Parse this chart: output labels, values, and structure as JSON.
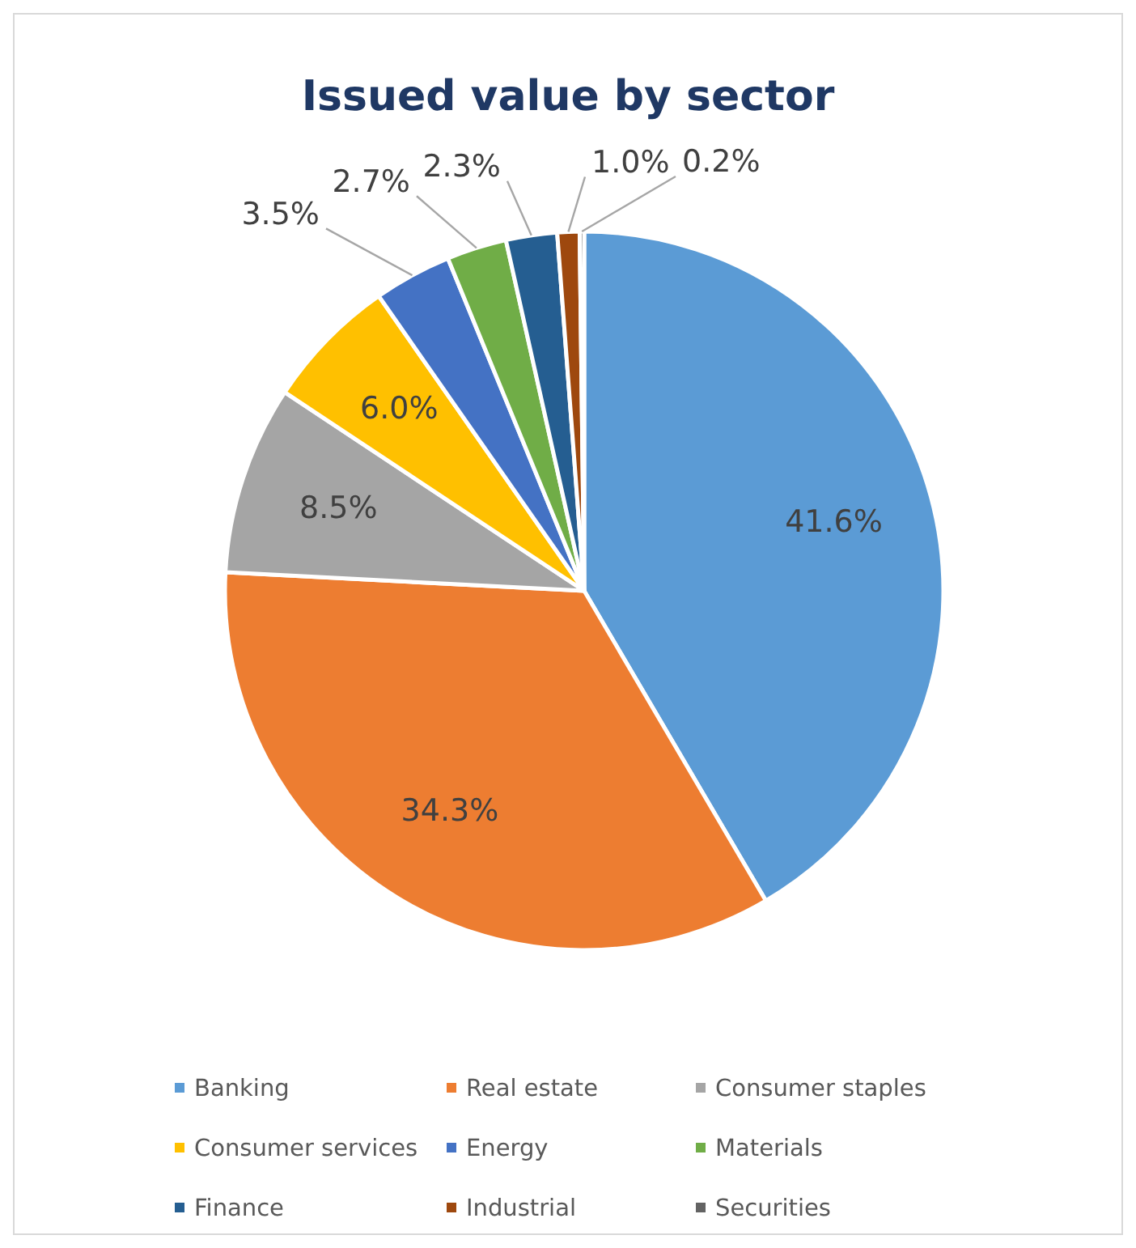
{
  "chart_data": {
    "type": "pie",
    "title": "Issued value by sector",
    "categories": [
      "Banking",
      "Real estate",
      "Consumer staples",
      "Consumer services",
      "Energy",
      "Materials",
      "Finance",
      "Industrial",
      "Securities"
    ],
    "values": [
      41.6,
      34.3,
      8.5,
      6.0,
      3.5,
      2.7,
      2.3,
      1.0,
      0.2
    ],
    "colors": [
      "#5b9bd5",
      "#ed7d31",
      "#a5a5a5",
      "#ffc000",
      "#4472c4",
      "#70ad47",
      "#255e91",
      "#9e480e",
      "#636363"
    ],
    "value_labels": [
      "41.6%",
      "34.3%",
      "8.5%",
      "6.0%",
      "3.5%",
      "2.7%",
      "2.3%",
      "1.0%",
      "0.2%"
    ],
    "legend": "bottom"
  }
}
